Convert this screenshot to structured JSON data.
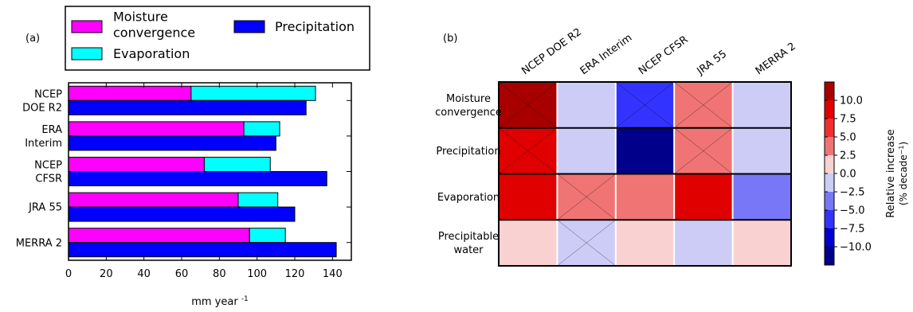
{
  "chart_data": [
    {
      "type": "bar",
      "panel_label": "(a)",
      "orientation": "horizontal",
      "stacked_series_top": true,
      "categories": [
        "NCEP\nDOE R2",
        "ERA\nInterim",
        "NCEP\nCFSR",
        "JRA 55",
        "MERRA 2"
      ],
      "series": [
        {
          "name": "Moisture\nconvergence",
          "color": "#ff00ff",
          "values": [
            65,
            93,
            72,
            90,
            96
          ]
        },
        {
          "name": "Evaporation",
          "color": "#00ffff",
          "values": [
            66,
            19,
            35,
            21,
            19
          ]
        },
        {
          "name": "Precipitation",
          "color": "#0000ff",
          "values": [
            126,
            110,
            137,
            120,
            142
          ]
        }
      ],
      "xlabel": "mm year",
      "xlabel_superscript": "-1",
      "xlim": [
        0,
        150
      ],
      "xticks": [
        0,
        20,
        40,
        60,
        80,
        100,
        120,
        140
      ],
      "legend_placement": "top"
    },
    {
      "type": "heatmap",
      "panel_label": "(b)",
      "columns": [
        "NCEP DOE R2",
        "ERA Interim",
        "NCEP CFSR",
        "JRA 55",
        "MERRA 2"
      ],
      "rows": [
        "Moisture\nconvergence",
        "Precipitation",
        "Evaporation",
        "Precipitable\nwater"
      ],
      "values": [
        [
          11.5,
          -1.5,
          -5.5,
          4.5,
          -1.5
        ],
        [
          8.5,
          -1.5,
          -11.5,
          4.5,
          -1.5
        ],
        [
          8.5,
          4.5,
          4.5,
          8.5,
          -4.5
        ],
        [
          1.5,
          -1.5,
          1.5,
          -1.5,
          1.5
        ]
      ],
      "hatched": [
        [
          true,
          false,
          true,
          true,
          false
        ],
        [
          true,
          false,
          false,
          true,
          false
        ],
        [
          false,
          true,
          false,
          false,
          false
        ],
        [
          false,
          true,
          false,
          false,
          false
        ]
      ],
      "colorbar": {
        "label": "Relative increase",
        "label_units": "(% decade",
        "label_units_superscript": "−1",
        "label_units_close": ")",
        "ticks": [
          10.0,
          7.5,
          5.0,
          2.5,
          0.0,
          -2.5,
          -5.0,
          -7.5,
          -10.0
        ],
        "tick_labels": [
          "10.0",
          "7.5",
          "5.0",
          "2.5",
          "0.0",
          "−2.5",
          "−5.0",
          "−7.5",
          "−10.0"
        ],
        "range": [
          -12.5,
          12.5
        ],
        "colors": [
          "#00008b",
          "#0000cd",
          "#3333ff",
          "#7777f7",
          "#ccccf7",
          "#fad1d1",
          "#f07474",
          "#f03030",
          "#e00000",
          "#a80000"
        ]
      }
    }
  ]
}
